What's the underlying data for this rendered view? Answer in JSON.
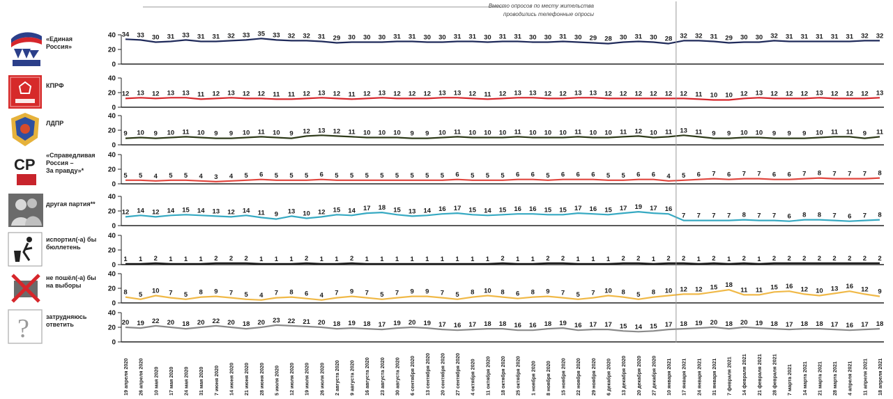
{
  "note": {
    "line1": "Вместо опросов по месту жительства",
    "line2": "проводились телефонные опросы"
  },
  "colors": {
    "er": "#1f2a5a",
    "kprf": "#d6262b",
    "ldpr": "#2f3b1a",
    "sr": "#e0463e",
    "other": "#36a9c2",
    "spoil": "#1a1a1a",
    "novote": "#f0b948",
    "unsure": "#8a8a8a",
    "divider": "#999999",
    "axis": "#222222"
  },
  "chart_data": {
    "type": "line",
    "ylim": [
      0,
      40
    ],
    "yticks": [
      "40",
      "20",
      "0"
    ],
    "x": [
      "19 апреля 2020",
      "26 апреля 2020",
      "10 мая 2020",
      "17 мая 2020",
      "24 мая 2020",
      "31 мая 2020",
      "7 июня 2020",
      "14 июня 2020",
      "21 июня 2020",
      "28 июня 2020",
      "5 июля 2020",
      "12 июля 2020",
      "19 июля 2020",
      "26 июля 2020",
      "2 августа 2020",
      "9 августа 2020",
      "16 августа 2020",
      "23 августа 2020",
      "30 августа 2020",
      "6 сентября 2020",
      "13 сентября 2020",
      "20 сентября 2020",
      "27 сентября 2020",
      "4 октября 2020",
      "11 октября 2020",
      "18 октября 2020",
      "25 октября 2020",
      "1 ноября 2020",
      "8 ноября 2020",
      "15 ноября 2020",
      "22 ноября 2020",
      "29 ноября 2020",
      "6 декабря 2020",
      "13 декабря 2020",
      "20 декабря 2020",
      "27 декабря 2020",
      "10 января 2021",
      "17 января 2021",
      "24 января 2021",
      "31 января 2021",
      "7 февраля 2021",
      "14 февраля 2021",
      "21 февраля 2021",
      "28 февраля 2021",
      "7 марта 2021",
      "14 марта 2021",
      "21 марта 2021",
      "28 марта 2021",
      "4 апреля 2021",
      "11 апреля 2021",
      "18 апреля 2021"
    ],
    "divider_after_index": 36,
    "series": [
      {
        "name": "«Единая Россия»",
        "label_lines": [
          "«Единая",
          "Россия»"
        ],
        "icon": "united-russia-logo",
        "color_key": "er",
        "values": [
          34,
          33,
          30,
          31,
          33,
          31,
          31,
          32,
          33,
          35,
          33,
          32,
          32,
          31,
          29,
          30,
          30,
          30,
          31,
          31,
          30,
          30,
          31,
          31,
          30,
          31,
          31,
          30,
          30,
          31,
          30,
          29,
          28,
          30,
          31,
          30,
          28,
          32,
          32,
          31,
          29,
          30,
          30,
          32,
          31,
          31,
          31,
          31,
          31,
          32,
          32
        ]
      },
      {
        "name": "КПРФ",
        "label_lines": [
          "КПРФ"
        ],
        "icon": "kprf-logo",
        "color_key": "kprf",
        "values": [
          12,
          13,
          12,
          13,
          13,
          11,
          12,
          13,
          12,
          12,
          11,
          11,
          12,
          13,
          12,
          11,
          12,
          13,
          12,
          12,
          12,
          13,
          13,
          12,
          11,
          12,
          13,
          13,
          12,
          12,
          13,
          13,
          12,
          12,
          12,
          12,
          12,
          12,
          11,
          10,
          10,
          12,
          13,
          12,
          12,
          12,
          13,
          12,
          12,
          12,
          13
        ]
      },
      {
        "name": "ЛДПР",
        "label_lines": [
          "ЛДПР"
        ],
        "icon": "ldpr-logo",
        "color_key": "ldpr",
        "values": [
          9,
          10,
          9,
          10,
          11,
          10,
          9,
          9,
          10,
          11,
          10,
          9,
          12,
          13,
          12,
          11,
          10,
          10,
          10,
          9,
          9,
          10,
          11,
          10,
          10,
          10,
          11,
          10,
          10,
          10,
          11,
          10,
          10,
          11,
          12,
          10,
          11,
          13,
          11,
          9,
          9,
          10,
          10,
          9,
          9,
          9,
          10,
          11,
          11,
          9,
          11
        ]
      },
      {
        "name": "«Справедливая Россия – За правду»*",
        "label_lines": [
          "«Справедливая",
          "Россия –",
          "За правду»*"
        ],
        "icon": "sr-logo",
        "color_key": "sr",
        "values": [
          5,
          5,
          4,
          5,
          5,
          4,
          3,
          4,
          5,
          6,
          5,
          5,
          5,
          6,
          5,
          5,
          5,
          5,
          5,
          5,
          5,
          5,
          6,
          5,
          5,
          5,
          6,
          6,
          5,
          6,
          6,
          6,
          5,
          5,
          6,
          6,
          4,
          5,
          6,
          7,
          6,
          7,
          7,
          6,
          6,
          7,
          8,
          7,
          7,
          7,
          8
        ]
      },
      {
        "name": "другая партия**",
        "label_lines": [
          "другая партия**"
        ],
        "icon": "people-icon",
        "color_key": "other",
        "values": [
          12,
          14,
          12,
          14,
          15,
          14,
          13,
          12,
          14,
          11,
          9,
          13,
          10,
          12,
          15,
          14,
          17,
          18,
          15,
          13,
          14,
          16,
          17,
          15,
          14,
          15,
          16,
          16,
          15,
          15,
          17,
          16,
          15,
          17,
          19,
          17,
          16,
          7,
          7,
          7,
          7,
          8,
          7,
          7,
          6,
          8,
          8,
          7,
          6,
          7,
          8
        ]
      },
      {
        "name": "испортил(-а) бы бюллетень",
        "label_lines": [
          "испортил(-а) бы",
          "бюллетень"
        ],
        "icon": "trash-icon",
        "color_key": "spoil",
        "values": [
          1,
          1,
          2,
          1,
          1,
          1,
          2,
          2,
          2,
          1,
          1,
          1,
          2,
          1,
          1,
          2,
          1,
          1,
          1,
          1,
          1,
          1,
          1,
          1,
          1,
          2,
          1,
          1,
          2,
          2,
          1,
          1,
          1,
          2,
          2,
          1,
          2,
          2,
          1,
          2,
          1,
          2,
          1,
          2,
          2,
          2,
          2,
          2,
          2,
          2,
          2
        ]
      },
      {
        "name": "не пошёл(-а) бы на выборы",
        "label_lines": [
          "не пошёл(-а) бы",
          "на выборы"
        ],
        "icon": "ballot-cross-icon",
        "color_key": "novote",
        "values": [
          8,
          5,
          10,
          7,
          5,
          8,
          9,
          7,
          5,
          4,
          7,
          8,
          6,
          4,
          7,
          9,
          7,
          5,
          7,
          9,
          9,
          7,
          5,
          8,
          10,
          8,
          6,
          8,
          9,
          7,
          5,
          7,
          10,
          8,
          5,
          8,
          10,
          12,
          12,
          15,
          18,
          11,
          11,
          15,
          16,
          12,
          10,
          13,
          16,
          12,
          9
        ]
      },
      {
        "name": "затрудняюсь ответить",
        "label_lines": [
          "затрудняюсь",
          "ответить"
        ],
        "icon": "question-icon",
        "color_key": "unsure",
        "values": [
          20,
          19,
          22,
          20,
          18,
          20,
          22,
          20,
          18,
          20,
          23,
          22,
          21,
          20,
          18,
          19,
          18,
          17,
          19,
          20,
          19,
          17,
          16,
          17,
          18,
          18,
          16,
          16,
          18,
          19,
          16,
          17,
          17,
          15,
          14,
          15,
          17,
          18,
          19,
          20,
          18,
          20,
          19,
          18,
          17,
          18,
          18,
          17,
          16,
          17,
          18
        ]
      }
    ]
  }
}
